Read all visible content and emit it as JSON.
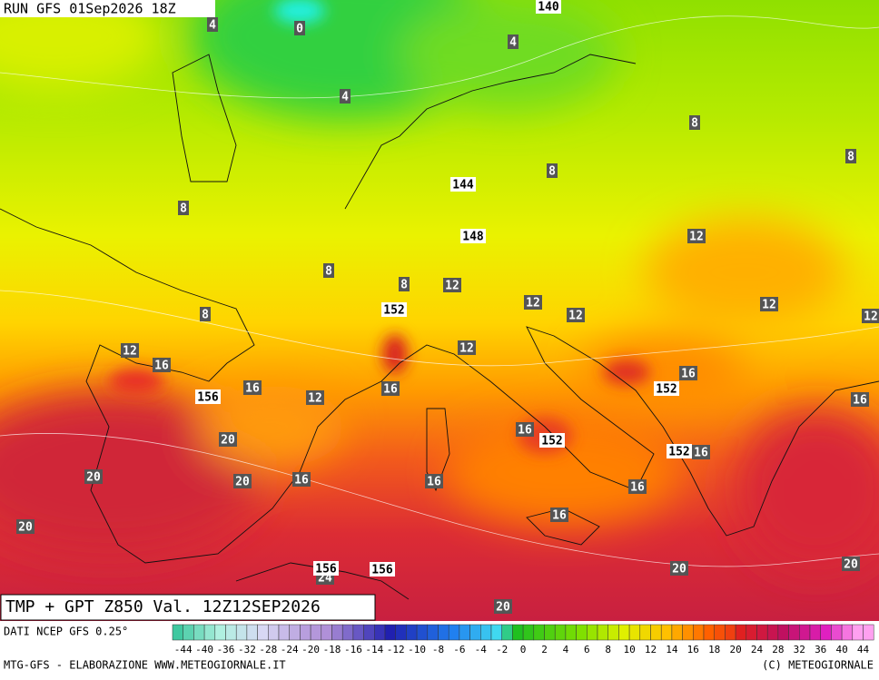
{
  "header": {
    "run": "RUN GFS 01Sep2026 18Z"
  },
  "map": {
    "temperature_labels": [
      4,
      0,
      4,
      4,
      8,
      8,
      8,
      8,
      12,
      8,
      8,
      12,
      12,
      12,
      12,
      12,
      8,
      12,
      16,
      12,
      16,
      16,
      12,
      16,
      16,
      16,
      20,
      16,
      20,
      20,
      16,
      16,
      16,
      20,
      16,
      20,
      20,
      20,
      24
    ],
    "height_labels": [
      140,
      144,
      148,
      152,
      156,
      152,
      152,
      152,
      156,
      156
    ]
  },
  "footer": {
    "title": "TMP + GPT Z850 Val. 12Z12SEP2026",
    "source": "DATI NCEP GFS 0.25°",
    "credit": "MTG-GFS - ELABORAZIONE WWW.METEOGIORNALE.IT",
    "copyright": "(C) METEOGIORNALE"
  },
  "colorbar": {
    "labels": [
      -44,
      -40,
      -36,
      -32,
      -28,
      -24,
      -20,
      -18,
      -16,
      -14,
      -12,
      -10,
      -8,
      -6,
      -4,
      -2,
      0,
      2,
      4,
      6,
      8,
      10,
      12,
      14,
      16,
      18,
      20,
      24,
      28,
      32,
      36,
      40,
      44
    ]
  }
}
